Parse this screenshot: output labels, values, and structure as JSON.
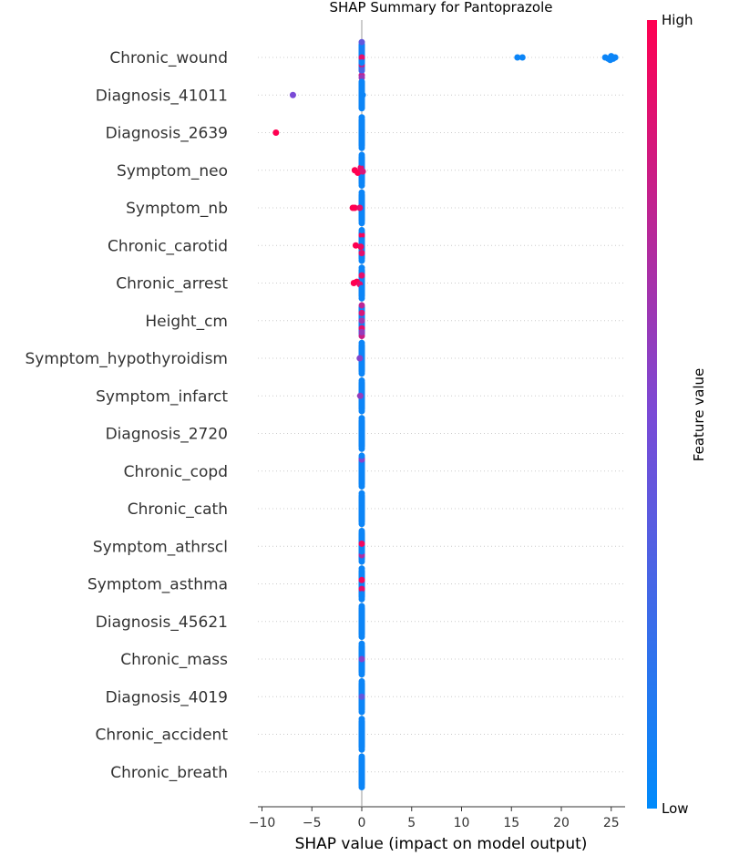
{
  "chart_data": {
    "type": "scatter",
    "title": "SHAP Summary for Pantoprazole",
    "xlabel": "SHAP value (impact on model output)",
    "xlim": [
      -11,
      27
    ],
    "xticks": [
      -10,
      -5,
      0,
      5,
      10,
      15,
      20,
      25
    ],
    "xtick_labels": [
      "−10",
      "−5",
      "0",
      "5",
      "10",
      "15",
      "20",
      "25"
    ],
    "colorbar": {
      "label": "Feature value",
      "high_label": "High",
      "low_label": "Low",
      "high_color": "#ff0051",
      "low_color": "#008bfb"
    },
    "features": [
      {
        "name": "Chronic_wound",
        "points": [
          [
            0,
            0.9,
            0.0
          ],
          [
            0,
            0.8,
            0.3
          ],
          [
            0,
            0.75,
            0.7
          ],
          [
            0,
            0.62,
            0.8
          ],
          [
            0,
            0.4,
            -0.6
          ],
          [
            0,
            0.3,
            0.5
          ],
          [
            0,
            0.1,
            -0.3
          ],
          [
            0,
            0.05,
            0.2
          ],
          [
            15.6,
            0.05,
            0.0
          ],
          [
            16.1,
            0.05,
            0.0
          ],
          [
            24.4,
            0.05,
            0.0
          ],
          [
            24.7,
            0.05,
            0.05
          ],
          [
            25.0,
            0.05,
            -0.05
          ],
          [
            25.2,
            0.05,
            0.05
          ],
          [
            25.4,
            0.05,
            0.0
          ],
          [
            24.9,
            0.05,
            0.1
          ]
        ]
      },
      {
        "name": "Diagnosis_41011",
        "points": [
          [
            -6.9,
            0.5,
            0.0
          ],
          [
            0,
            0.05,
            0.0
          ],
          [
            0,
            0.05,
            -0.5
          ],
          [
            0,
            0.05,
            0.5
          ],
          [
            0.1,
            0.05,
            0.0
          ]
        ]
      },
      {
        "name": "Diagnosis_2639",
        "points": [
          [
            -8.6,
            1.0,
            0.0
          ],
          [
            0,
            0.05,
            0.0
          ],
          [
            0,
            0.05,
            -0.6
          ],
          [
            0,
            0.05,
            0.6
          ]
        ]
      },
      {
        "name": "Symptom_neo",
        "points": [
          [
            -0.7,
            1.0,
            0.0
          ],
          [
            -0.4,
            1.0,
            0.1
          ],
          [
            -0.1,
            0.9,
            -0.1
          ],
          [
            0.1,
            0.85,
            0.05
          ],
          [
            0,
            0.05,
            -0.6
          ],
          [
            0,
            0.05,
            0.6
          ],
          [
            0,
            0.05,
            -0.3
          ],
          [
            0,
            0.05,
            0.3
          ]
        ]
      },
      {
        "name": "Symptom_nb",
        "points": [
          [
            -0.9,
            1.0,
            0.0
          ],
          [
            -0.7,
            1.0,
            0.0
          ],
          [
            -0.2,
            0.9,
            0.0
          ],
          [
            0,
            0.05,
            -0.6
          ],
          [
            0,
            0.05,
            0.6
          ],
          [
            0,
            0.05,
            -0.3
          ],
          [
            0,
            0.05,
            0.3
          ]
        ]
      },
      {
        "name": "Chronic_carotid",
        "points": [
          [
            -0.6,
            1.0,
            0.0
          ],
          [
            -0.1,
            0.95,
            0.05
          ],
          [
            0,
            0.95,
            -0.4
          ],
          [
            0,
            0.9,
            0.3
          ],
          [
            0,
            0.05,
            -0.6
          ],
          [
            0,
            0.05,
            0.6
          ],
          [
            0,
            0.05,
            -0.2
          ]
        ]
      },
      {
        "name": "Chronic_arrest",
        "points": [
          [
            -0.8,
            1.0,
            0.0
          ],
          [
            -0.5,
            1.0,
            -0.05
          ],
          [
            -0.2,
            0.9,
            0.05
          ],
          [
            0,
            0.9,
            -0.3
          ],
          [
            0,
            0.05,
            -0.6
          ],
          [
            0,
            0.05,
            0.6
          ],
          [
            0,
            0.05,
            0.2
          ]
        ]
      },
      {
        "name": "Height_cm",
        "points": [
          [
            0,
            0.75,
            -0.6
          ],
          [
            0,
            0.85,
            -0.3
          ],
          [
            0,
            0.65,
            0.0
          ],
          [
            0,
            0.9,
            0.3
          ],
          [
            0,
            0.8,
            0.6
          ],
          [
            0,
            0.6,
            0.45
          ]
        ]
      },
      {
        "name": "Symptom_hypothyroidism",
        "points": [
          [
            -0.2,
            0.55,
            0.0
          ],
          [
            0,
            0.05,
            -0.6
          ],
          [
            0,
            0.05,
            0.6
          ],
          [
            0,
            0.05,
            -0.3
          ],
          [
            0,
            0.05,
            0.3
          ]
        ]
      },
      {
        "name": "Symptom_infarct",
        "points": [
          [
            -0.15,
            0.6,
            0.0
          ],
          [
            0,
            0.05,
            -0.6
          ],
          [
            0,
            0.05,
            0.6
          ],
          [
            0,
            0.05,
            -0.3
          ],
          [
            0,
            0.05,
            0.3
          ]
        ]
      },
      {
        "name": "Diagnosis_2720",
        "points": [
          [
            0,
            0.05,
            -0.6
          ],
          [
            0,
            0.05,
            0.6
          ],
          [
            0,
            0.05,
            -0.3
          ],
          [
            0,
            0.05,
            0.3
          ],
          [
            0,
            0.05,
            0.0
          ]
        ]
      },
      {
        "name": "Chronic_copd",
        "points": [
          [
            0,
            0.55,
            -0.45
          ],
          [
            0,
            0.05,
            -0.6
          ],
          [
            0,
            0.05,
            0.6
          ],
          [
            0,
            0.05,
            -0.2
          ],
          [
            0,
            0.05,
            0.3
          ]
        ]
      },
      {
        "name": "Chronic_cath",
        "points": [
          [
            0,
            0.05,
            -0.6
          ],
          [
            0,
            0.05,
            0.6
          ],
          [
            0,
            0.05,
            -0.3
          ],
          [
            0,
            0.05,
            0.3
          ],
          [
            0,
            0.05,
            0.0
          ]
        ]
      },
      {
        "name": "Symptom_athrscl",
        "points": [
          [
            0,
            0.95,
            -0.1
          ],
          [
            0,
            0.7,
            0.35
          ],
          [
            0,
            0.05,
            -0.6
          ],
          [
            0,
            0.05,
            0.6
          ],
          [
            0,
            0.05,
            0.2
          ]
        ]
      },
      {
        "name": "Symptom_asthma",
        "points": [
          [
            0,
            0.95,
            -0.15
          ],
          [
            0,
            0.9,
            0.2
          ],
          [
            0,
            0.05,
            -0.6
          ],
          [
            0,
            0.05,
            0.6
          ],
          [
            0,
            0.05,
            0.4
          ]
        ]
      },
      {
        "name": "Diagnosis_45621",
        "points": [
          [
            0,
            0.05,
            -0.6
          ],
          [
            0,
            0.05,
            0.6
          ],
          [
            0,
            0.05,
            -0.3
          ],
          [
            0,
            0.05,
            0.3
          ],
          [
            0,
            0.05,
            0.0
          ]
        ]
      },
      {
        "name": "Chronic_mass",
        "points": [
          [
            0,
            0.55,
            0.0
          ],
          [
            0,
            0.05,
            -0.6
          ],
          [
            0,
            0.05,
            0.6
          ],
          [
            0,
            0.05,
            -0.3
          ],
          [
            0,
            0.05,
            0.3
          ]
        ]
      },
      {
        "name": "Diagnosis_4019",
        "points": [
          [
            0,
            0.4,
            0.0
          ],
          [
            0,
            0.05,
            -0.6
          ],
          [
            0,
            0.05,
            0.6
          ],
          [
            0,
            0.05,
            -0.3
          ],
          [
            0,
            0.05,
            0.3
          ]
        ]
      },
      {
        "name": "Chronic_accident",
        "points": [
          [
            0,
            0.05,
            -0.6
          ],
          [
            0,
            0.05,
            0.6
          ],
          [
            0,
            0.05,
            -0.3
          ],
          [
            0,
            0.05,
            0.3
          ],
          [
            0,
            0.05,
            0.0
          ]
        ]
      },
      {
        "name": "Chronic_breath",
        "points": [
          [
            0,
            0.05,
            -0.6
          ],
          [
            0,
            0.05,
            0.6
          ],
          [
            0,
            0.05,
            -0.3
          ],
          [
            0,
            0.05,
            0.3
          ],
          [
            0,
            0.05,
            0.0
          ]
        ]
      }
    ]
  }
}
